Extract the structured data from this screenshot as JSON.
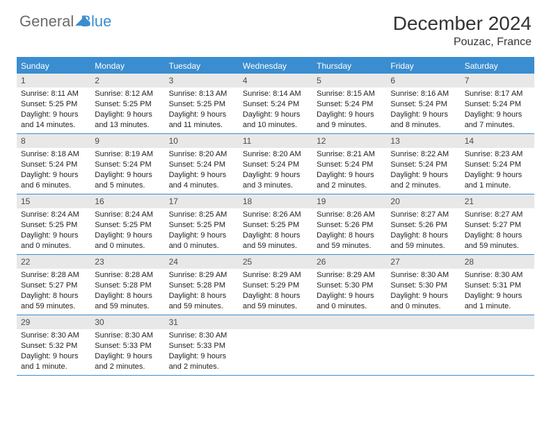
{
  "logo": {
    "general": "General",
    "blue": "Blue"
  },
  "title": "December 2024",
  "subtitle": "Pouzac, France",
  "colors": {
    "header_bg": "#3a8dd0",
    "header_text": "#ffffff",
    "daynum_bg": "#e8e8e8",
    "border": "#3a8dd0",
    "text": "#222222",
    "logo_gray": "#6b6b6b",
    "logo_blue": "#3a8dd0"
  },
  "weekdays": [
    "Sunday",
    "Monday",
    "Tuesday",
    "Wednesday",
    "Thursday",
    "Friday",
    "Saturday"
  ],
  "weeks": [
    [
      {
        "n": "1",
        "sunrise": "8:11 AM",
        "sunset": "5:25 PM",
        "daylight": "9 hours and 14 minutes."
      },
      {
        "n": "2",
        "sunrise": "8:12 AM",
        "sunset": "5:25 PM",
        "daylight": "9 hours and 13 minutes."
      },
      {
        "n": "3",
        "sunrise": "8:13 AM",
        "sunset": "5:25 PM",
        "daylight": "9 hours and 11 minutes."
      },
      {
        "n": "4",
        "sunrise": "8:14 AM",
        "sunset": "5:24 PM",
        "daylight": "9 hours and 10 minutes."
      },
      {
        "n": "5",
        "sunrise": "8:15 AM",
        "sunset": "5:24 PM",
        "daylight": "9 hours and 9 minutes."
      },
      {
        "n": "6",
        "sunrise": "8:16 AM",
        "sunset": "5:24 PM",
        "daylight": "9 hours and 8 minutes."
      },
      {
        "n": "7",
        "sunrise": "8:17 AM",
        "sunset": "5:24 PM",
        "daylight": "9 hours and 7 minutes."
      }
    ],
    [
      {
        "n": "8",
        "sunrise": "8:18 AM",
        "sunset": "5:24 PM",
        "daylight": "9 hours and 6 minutes."
      },
      {
        "n": "9",
        "sunrise": "8:19 AM",
        "sunset": "5:24 PM",
        "daylight": "9 hours and 5 minutes."
      },
      {
        "n": "10",
        "sunrise": "8:20 AM",
        "sunset": "5:24 PM",
        "daylight": "9 hours and 4 minutes."
      },
      {
        "n": "11",
        "sunrise": "8:20 AM",
        "sunset": "5:24 PM",
        "daylight": "9 hours and 3 minutes."
      },
      {
        "n": "12",
        "sunrise": "8:21 AM",
        "sunset": "5:24 PM",
        "daylight": "9 hours and 2 minutes."
      },
      {
        "n": "13",
        "sunrise": "8:22 AM",
        "sunset": "5:24 PM",
        "daylight": "9 hours and 2 minutes."
      },
      {
        "n": "14",
        "sunrise": "8:23 AM",
        "sunset": "5:24 PM",
        "daylight": "9 hours and 1 minute."
      }
    ],
    [
      {
        "n": "15",
        "sunrise": "8:24 AM",
        "sunset": "5:25 PM",
        "daylight": "9 hours and 0 minutes."
      },
      {
        "n": "16",
        "sunrise": "8:24 AM",
        "sunset": "5:25 PM",
        "daylight": "9 hours and 0 minutes."
      },
      {
        "n": "17",
        "sunrise": "8:25 AM",
        "sunset": "5:25 PM",
        "daylight": "9 hours and 0 minutes."
      },
      {
        "n": "18",
        "sunrise": "8:26 AM",
        "sunset": "5:25 PM",
        "daylight": "8 hours and 59 minutes."
      },
      {
        "n": "19",
        "sunrise": "8:26 AM",
        "sunset": "5:26 PM",
        "daylight": "8 hours and 59 minutes."
      },
      {
        "n": "20",
        "sunrise": "8:27 AM",
        "sunset": "5:26 PM",
        "daylight": "8 hours and 59 minutes."
      },
      {
        "n": "21",
        "sunrise": "8:27 AM",
        "sunset": "5:27 PM",
        "daylight": "8 hours and 59 minutes."
      }
    ],
    [
      {
        "n": "22",
        "sunrise": "8:28 AM",
        "sunset": "5:27 PM",
        "daylight": "8 hours and 59 minutes."
      },
      {
        "n": "23",
        "sunrise": "8:28 AM",
        "sunset": "5:28 PM",
        "daylight": "8 hours and 59 minutes."
      },
      {
        "n": "24",
        "sunrise": "8:29 AM",
        "sunset": "5:28 PM",
        "daylight": "8 hours and 59 minutes."
      },
      {
        "n": "25",
        "sunrise": "8:29 AM",
        "sunset": "5:29 PM",
        "daylight": "8 hours and 59 minutes."
      },
      {
        "n": "26",
        "sunrise": "8:29 AM",
        "sunset": "5:30 PM",
        "daylight": "9 hours and 0 minutes."
      },
      {
        "n": "27",
        "sunrise": "8:30 AM",
        "sunset": "5:30 PM",
        "daylight": "9 hours and 0 minutes."
      },
      {
        "n": "28",
        "sunrise": "8:30 AM",
        "sunset": "5:31 PM",
        "daylight": "9 hours and 1 minute."
      }
    ],
    [
      {
        "n": "29",
        "sunrise": "8:30 AM",
        "sunset": "5:32 PM",
        "daylight": "9 hours and 1 minute."
      },
      {
        "n": "30",
        "sunrise": "8:30 AM",
        "sunset": "5:33 PM",
        "daylight": "9 hours and 2 minutes."
      },
      {
        "n": "31",
        "sunrise": "8:30 AM",
        "sunset": "5:33 PM",
        "daylight": "9 hours and 2 minutes."
      },
      {
        "empty": true
      },
      {
        "empty": true
      },
      {
        "empty": true
      },
      {
        "empty": true
      }
    ]
  ],
  "labels": {
    "sunrise": "Sunrise: ",
    "sunset": "Sunset: ",
    "daylight": "Daylight: "
  }
}
